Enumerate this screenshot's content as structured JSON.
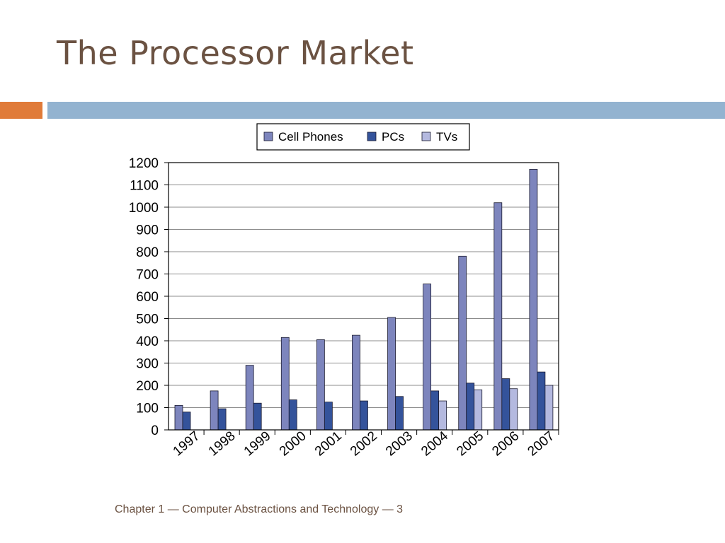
{
  "slide": {
    "title": "The Processor Market",
    "footer": "Chapter 1 — Computer Abstractions and Technology — 3"
  },
  "colors": {
    "title": "#6b5242",
    "accent_orange": "#e07b39",
    "accent_blue": "#93b3d0",
    "cell_phones": "#7d85bd",
    "pcs": "#34539b",
    "tvs": "#b4b9df"
  },
  "chart_data": {
    "type": "bar",
    "categories": [
      "1997",
      "1998",
      "1999",
      "2000",
      "2001",
      "2002",
      "2003",
      "2004",
      "2005",
      "2006",
      "2007"
    ],
    "series": [
      {
        "name": "Cell Phones",
        "values": [
          110,
          175,
          290,
          415,
          405,
          425,
          505,
          655,
          780,
          1020,
          1170
        ]
      },
      {
        "name": "PCs",
        "values": [
          80,
          95,
          120,
          135,
          125,
          130,
          150,
          175,
          210,
          230,
          260
        ]
      },
      {
        "name": "TVs",
        "values": [
          null,
          null,
          null,
          null,
          null,
          null,
          null,
          130,
          180,
          185,
          200
        ]
      }
    ],
    "ylim": [
      0,
      1200
    ],
    "yticks": [
      0,
      100,
      200,
      300,
      400,
      500,
      600,
      700,
      800,
      900,
      1000,
      1100,
      1200
    ],
    "legend_position": "top",
    "grid": true
  }
}
